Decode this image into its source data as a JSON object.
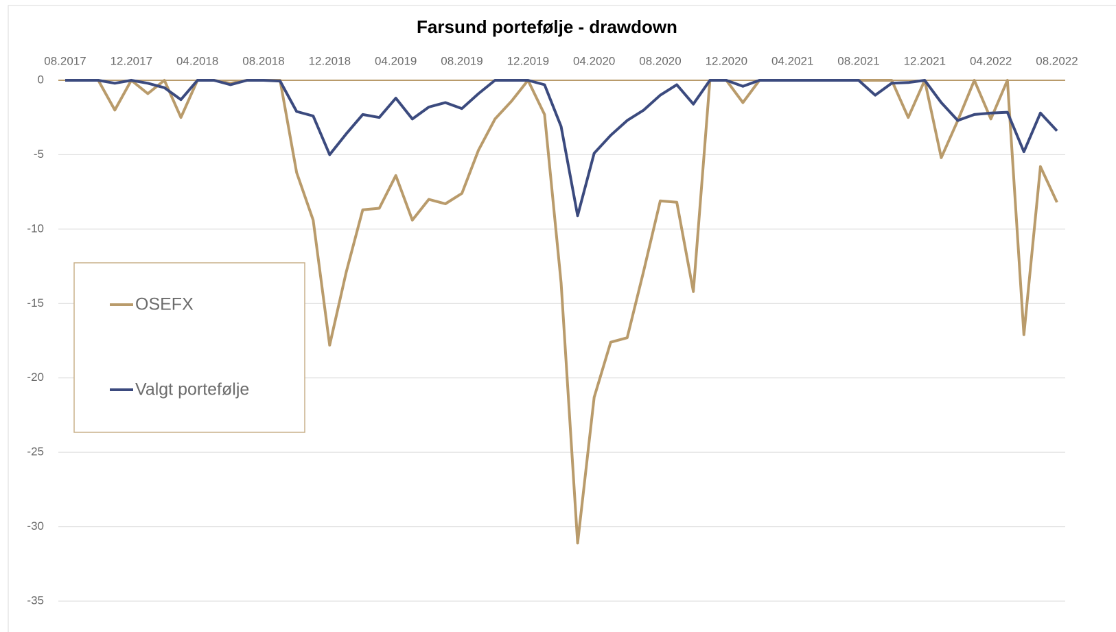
{
  "chart_data": {
    "type": "line",
    "title": "Farsund portefølje - drawdown",
    "categories": [
      "08.2017",
      null,
      null,
      null,
      "12.2017",
      null,
      null,
      null,
      "04.2018",
      null,
      null,
      null,
      "08.2018",
      null,
      null,
      null,
      "12.2018",
      null,
      null,
      null,
      "04.2019",
      null,
      null,
      null,
      "08.2019",
      null,
      null,
      null,
      "12.2019",
      null,
      null,
      null,
      "04.2020",
      null,
      null,
      null,
      "08.2020",
      null,
      null,
      null,
      "12.2020",
      null,
      null,
      null,
      "04.2021",
      null,
      null,
      null,
      "08.2021",
      null,
      null,
      null,
      "12.2021",
      null,
      null,
      null,
      "04.2022",
      null,
      null,
      null,
      "08.2022"
    ],
    "series": [
      {
        "name": "OSEFX",
        "color": "#b99b6b",
        "values": [
          0,
          0,
          0,
          -2.0,
          0,
          -0.9,
          0,
          -2.5,
          0,
          0,
          -0.2,
          0,
          0,
          0,
          -6.2,
          -9.4,
          -17.8,
          -12.9,
          -8.7,
          -8.6,
          -6.4,
          -9.4,
          -8.0,
          -8.3,
          -7.6,
          -4.7,
          -2.6,
          -1.4,
          0,
          -2.3,
          -13.6,
          -31.1,
          -21.3,
          -17.6,
          -17.3,
          -12.8,
          -8.1,
          -8.2,
          -14.2,
          0,
          0,
          -1.5,
          0,
          0,
          0,
          0,
          0,
          0,
          0,
          0,
          0,
          -2.5,
          0,
          -5.2,
          -2.7,
          0,
          -2.6,
          0,
          -17.1,
          -5.8,
          -8.2
        ]
      },
      {
        "name": "Valgt portefølje",
        "color": "#3b4a7e",
        "values": [
          0,
          0,
          0,
          -0.2,
          0,
          -0.2,
          -0.5,
          -1.3,
          0,
          0,
          -0.3,
          0,
          0,
          -0.05,
          -2.1,
          -2.4,
          -5.0,
          -3.6,
          -2.3,
          -2.5,
          -1.2,
          -2.6,
          -1.8,
          -1.5,
          -1.9,
          -0.9,
          0,
          0,
          0,
          -0.3,
          -3.1,
          -9.1,
          -4.9,
          -3.7,
          -2.7,
          -2.0,
          -1.0,
          -0.3,
          -1.6,
          0,
          0,
          -0.4,
          0,
          0,
          0,
          0,
          0,
          0,
          0,
          -1.0,
          -0.2,
          -0.15,
          0,
          -1.5,
          -2.7,
          -2.3,
          -2.2,
          -2.15,
          -4.8,
          -2.2,
          -3.4
        ]
      }
    ],
    "ylim": [
      -35,
      0
    ],
    "yticks": [
      0,
      -5,
      -10,
      -15,
      -20,
      -25,
      -30,
      -35
    ],
    "grid": true,
    "legend": "left"
  }
}
